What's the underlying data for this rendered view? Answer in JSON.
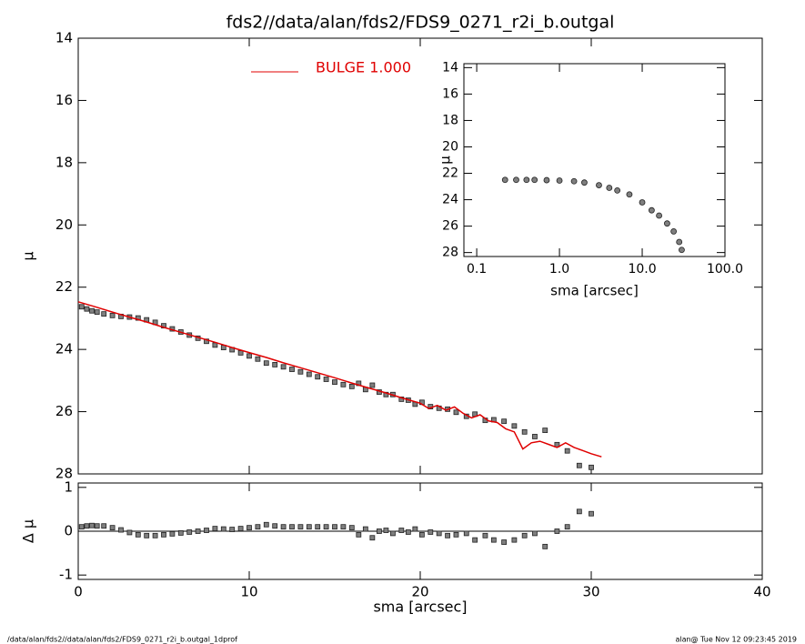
{
  "chart_data": [
    {
      "type": "scatter",
      "title": "fds2//data/alan/fds2/FDS9_0271_r2i_b.outgal",
      "y_label": "μ",
      "xlim": [
        0,
        40
      ],
      "ylim": [
        28,
        14
      ],
      "yticks": [
        14,
        16,
        18,
        20,
        22,
        24,
        26,
        28
      ],
      "legend": "top-left",
      "series": [
        {
          "color": "#7f7f7f",
          "style": "square",
          "x": [
            0.2,
            0.5,
            0.8,
            1.1,
            1.5,
            2,
            2.5,
            3,
            3.5,
            4,
            4.5,
            5,
            5.5,
            6,
            6.5,
            7,
            7.5,
            8,
            8.5,
            9,
            9.5,
            10,
            10.5,
            11,
            11.5,
            12,
            12.5,
            13,
            13.5,
            14,
            14.5,
            15,
            15.5,
            16,
            16.4,
            16.8,
            17.2,
            17.6,
            18,
            18.4,
            18.9,
            19.3,
            19.7,
            20.1,
            20.6,
            21.1,
            21.6,
            22.1,
            22.7,
            23.2,
            23.8,
            24.3,
            24.9,
            25.5,
            26.1,
            26.7,
            27.3,
            28,
            28.6,
            29.3,
            30
          ],
          "values": [
            22.63,
            22.7,
            22.76,
            22.8,
            22.86,
            22.91,
            22.94,
            22.96,
            22.99,
            23.05,
            23.13,
            23.24,
            23.34,
            23.44,
            23.54,
            23.64,
            23.74,
            23.86,
            23.94,
            24.01,
            24.11,
            24.21,
            24.31,
            24.44,
            24.49,
            24.56,
            24.64,
            24.72,
            24.8,
            24.88,
            24.96,
            25.05,
            25.13,
            25.19,
            25.09,
            25.29,
            25.15,
            25.37,
            25.45,
            25.45,
            25.6,
            25.63,
            25.76,
            25.7,
            25.84,
            25.89,
            25.92,
            26.02,
            26.15,
            26.08,
            26.28,
            26.26,
            26.31,
            26.46,
            26.65,
            26.8,
            26.6,
            27.06,
            27.26,
            27.73,
            27.79
          ]
        },
        {
          "name": "BULGE  1.000",
          "color": "#e00000",
          "style": "line",
          "x": [
            0,
            1,
            2,
            3,
            4,
            5,
            6,
            7,
            8,
            9,
            10,
            11,
            12,
            13,
            14,
            15,
            16,
            17,
            18,
            19,
            20,
            20.5,
            21,
            21.5,
            22,
            22.5,
            23,
            23.5,
            24,
            24.5,
            25,
            25.5,
            26,
            26.5,
            27,
            27.5,
            28,
            28.5,
            29,
            29.5,
            30,
            30.6
          ],
          "values": [
            22.47,
            22.63,
            22.8,
            22.96,
            23.12,
            23.29,
            23.45,
            23.61,
            23.77,
            23.94,
            24.1,
            24.26,
            24.43,
            24.59,
            24.75,
            24.91,
            25.08,
            25.24,
            25.4,
            25.57,
            25.73,
            25.9,
            25.8,
            25.95,
            25.85,
            26.05,
            26.2,
            26.1,
            26.3,
            26.35,
            26.55,
            26.65,
            27.2,
            27.0,
            26.95,
            27.05,
            27.15,
            27.0,
            27.15,
            27.25,
            27.35,
            27.45
          ]
        }
      ]
    },
    {
      "type": "scatter",
      "x_label": "sma [arcsec]",
      "y_label": "Δ μ",
      "xlim": [
        0,
        40
      ],
      "xticks": [
        0,
        10,
        20,
        30,
        40
      ],
      "ylim": [
        -1.1,
        1.1
      ],
      "yticks": [
        -1,
        0,
        1
      ],
      "series": [
        {
          "color": "#7f7f7f",
          "style": "square",
          "x": [
            0.2,
            0.5,
            0.8,
            1.1,
            1.5,
            2,
            2.5,
            3,
            3.5,
            4,
            4.5,
            5,
            5.5,
            6,
            6.5,
            7,
            7.5,
            8,
            8.5,
            9,
            9.5,
            10,
            10.5,
            11,
            11.5,
            12,
            12.5,
            13,
            13.5,
            14,
            14.5,
            15,
            15.5,
            16,
            16.4,
            16.8,
            17.2,
            17.6,
            18,
            18.4,
            18.9,
            19.3,
            19.7,
            20.1,
            20.6,
            21.1,
            21.6,
            22.1,
            22.7,
            23.2,
            23.8,
            24.3,
            24.9,
            25.5,
            26.1,
            26.7,
            27.3,
            28,
            28.6,
            29.3,
            30
          ],
          "values": [
            0.1,
            0.12,
            0.13,
            0.12,
            0.12,
            0.08,
            0.03,
            -0.03,
            -0.08,
            -0.1,
            -0.1,
            -0.08,
            -0.06,
            -0.04,
            -0.02,
            0,
            0.02,
            0.06,
            0.05,
            0.04,
            0.06,
            0.08,
            0.1,
            0.15,
            0.12,
            0.1,
            0.1,
            0.1,
            0.1,
            0.1,
            0.1,
            0.1,
            0.1,
            0.08,
            -0.08,
            0.05,
            -0.15,
            0,
            0.02,
            -0.05,
            0.02,
            -0.02,
            0.05,
            -0.08,
            -0.02,
            -0.05,
            -0.1,
            -0.08,
            -0.05,
            -0.2,
            -0.1,
            -0.2,
            -0.25,
            -0.2,
            -0.1,
            -0.05,
            -0.35,
            0,
            0.1,
            0.45,
            0.4
          ]
        }
      ]
    },
    {
      "type": "scatter",
      "x_label": "sma [arcsec]",
      "y_label": "μ",
      "log_x": true,
      "xlim": [
        0.07,
        100
      ],
      "xticks": [
        {
          "value": 0.1,
          "label": "0.1"
        },
        {
          "value": 1,
          "label": "1.0"
        },
        {
          "value": 10,
          "label": "10.0"
        },
        {
          "value": 100,
          "label": "100.0"
        }
      ],
      "ylim": [
        28.3,
        13.7
      ],
      "yticks": [
        14,
        16,
        18,
        20,
        22,
        24,
        26,
        28
      ],
      "series": [
        {
          "color": "#7f7f7f",
          "style": "circle",
          "x": [
            0.22,
            0.3,
            0.4,
            0.5,
            0.7,
            1,
            1.5,
            2,
            3,
            4,
            5,
            7,
            10,
            13,
            16,
            20,
            24,
            28,
            30
          ],
          "values": [
            22.5,
            22.5,
            22.5,
            22.5,
            22.52,
            22.55,
            22.6,
            22.7,
            22.9,
            23.1,
            23.3,
            23.6,
            24.2,
            24.8,
            25.2,
            25.8,
            26.4,
            27.2,
            27.8
          ]
        }
      ]
    }
  ],
  "footer": {
    "path": "/data/alan/fds2//data/alan/fds2/FDS9_0271_r2i_b.outgal_1dprof",
    "stamp": "alan@  Tue Nov 12 09:23:45 2019"
  }
}
